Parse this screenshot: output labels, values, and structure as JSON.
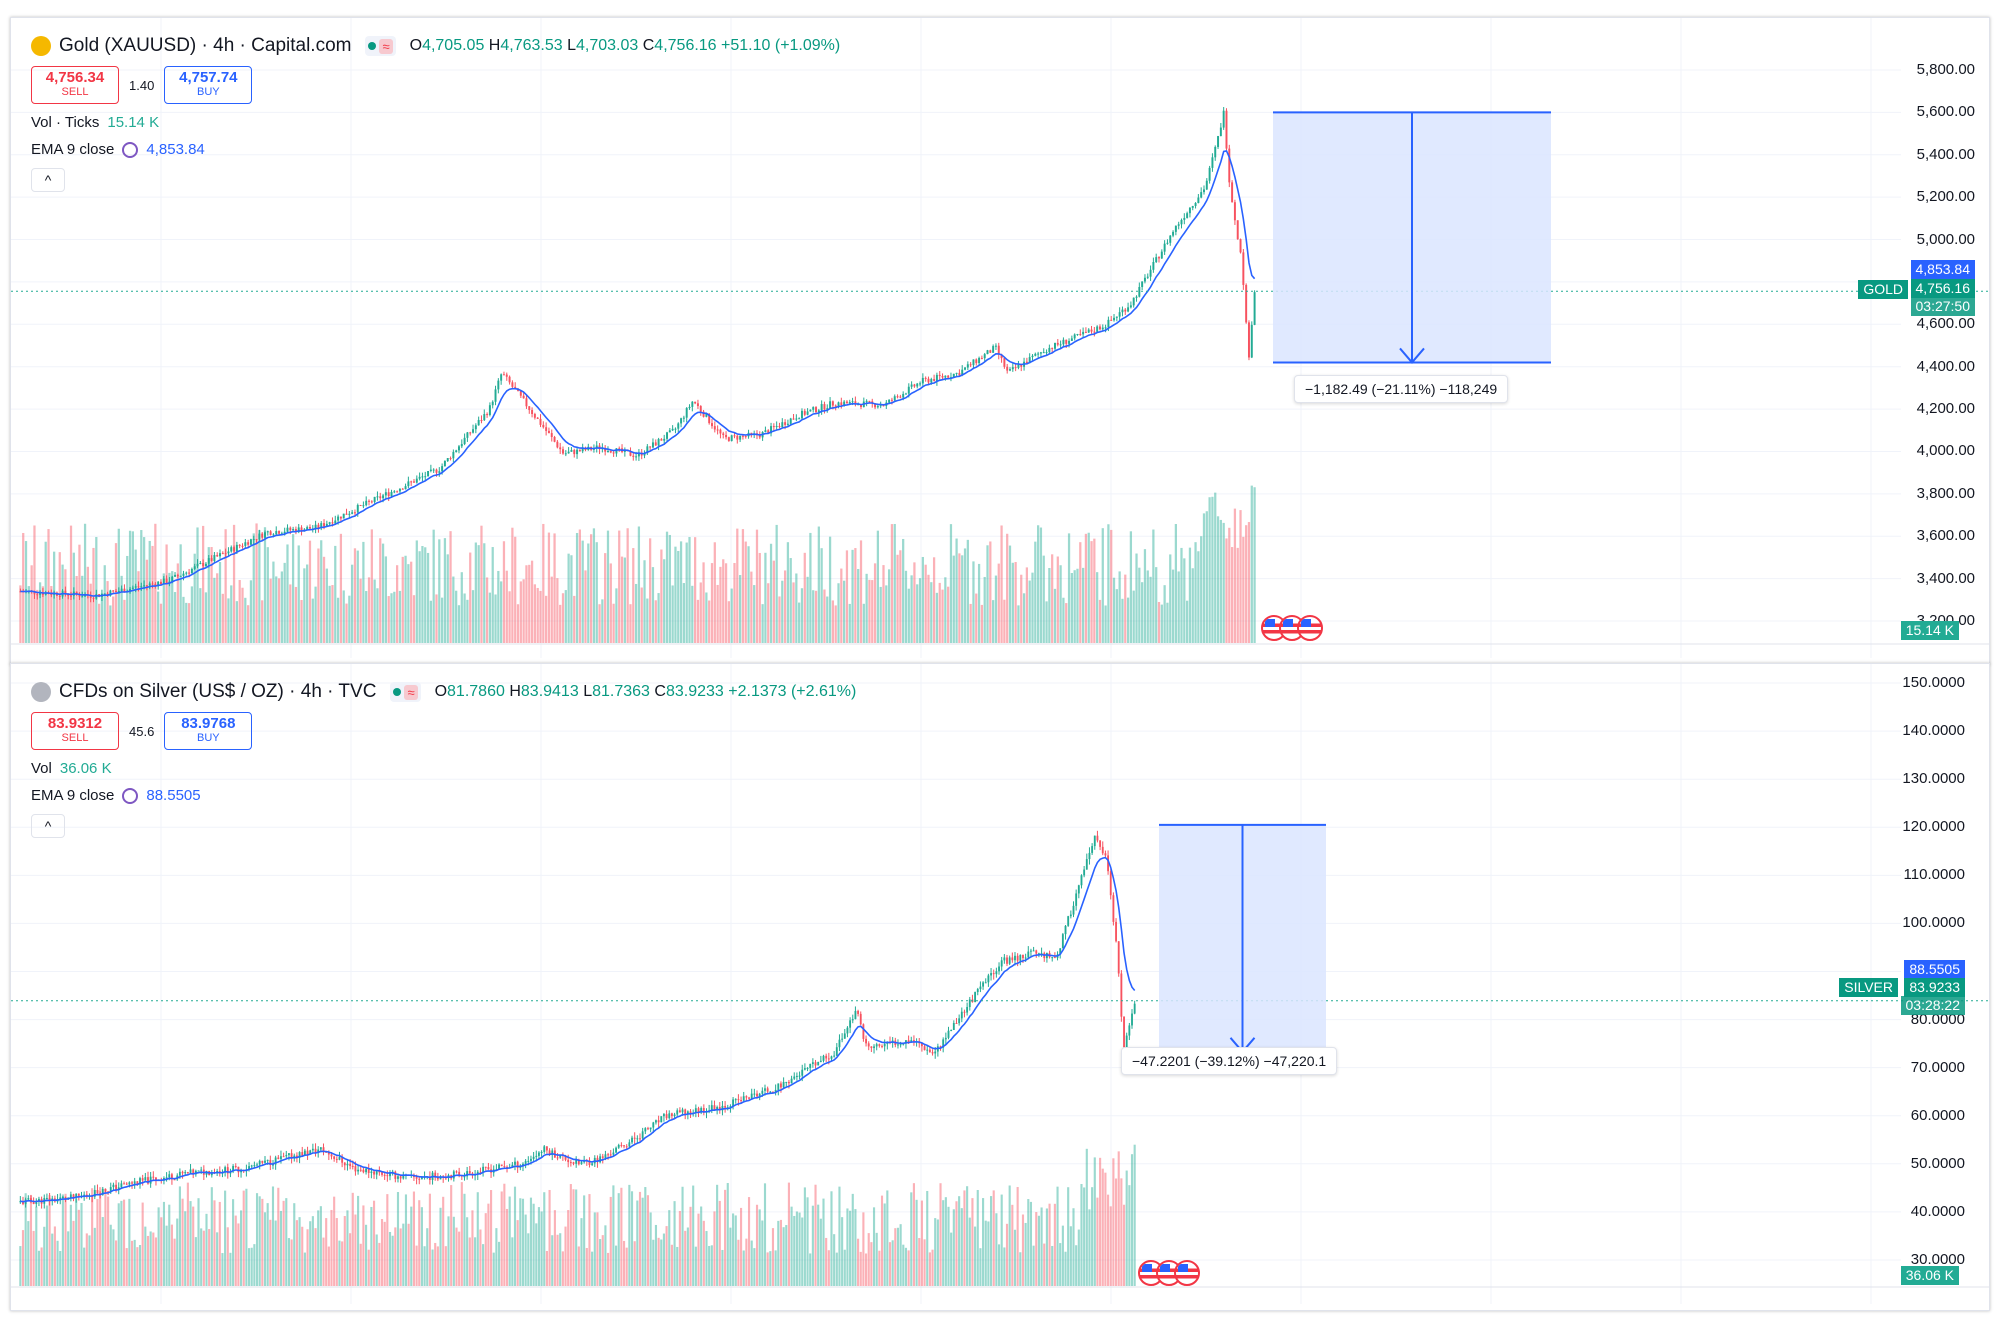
{
  "chart_data": [
    {
      "id": "gold",
      "type": "candlestick",
      "title": "Gold (XAUUSD) · 4h · Capital.com",
      "ohlc": {
        "o_label": "O",
        "o": "4,705.05",
        "h_label": "H",
        "h": "4,763.53",
        "l_label": "L",
        "l": "4,703.03",
        "c_label": "C",
        "c": "4,756.16",
        "change": "+51.10 (+1.09%)"
      },
      "sell": {
        "value": "4,756.34",
        "label": "SELL"
      },
      "buy": {
        "value": "4,757.74",
        "label": "BUY"
      },
      "spread": "1.40",
      "volume": {
        "label": "Vol · Ticks",
        "value": "15.14 K",
        "axis_value": "15.14 K"
      },
      "ema": {
        "label": "EMA 9 close",
        "value": "4,853.84"
      },
      "y_ticks": [
        "5,800.00",
        "5,600.00",
        "5,400.00",
        "5,200.00",
        "5,000.00",
        "4,800.00",
        "4,600.00",
        "4,400.00",
        "4,200.00",
        "4,000.00",
        "3,800.00",
        "3,600.00",
        "3,400.00",
        "3,200.00"
      ],
      "ylim": [
        3200,
        5800
      ],
      "symbol_tag": "GOLD",
      "price_tag": "4,756.16",
      "countdown": "03:27:50",
      "ema_tag": "4,853.84",
      "price_anchors": [
        [
          0,
          3340
        ],
        [
          0.06,
          3320
        ],
        [
          0.12,
          3390
        ],
        [
          0.2,
          3620
        ],
        [
          0.24,
          3640
        ],
        [
          0.29,
          3780
        ],
        [
          0.34,
          3920
        ],
        [
          0.38,
          4200
        ],
        [
          0.39,
          4370
        ],
        [
          0.41,
          4220
        ],
        [
          0.44,
          3990
        ],
        [
          0.47,
          4020
        ],
        [
          0.5,
          3980
        ],
        [
          0.53,
          4100
        ],
        [
          0.545,
          4240
        ],
        [
          0.57,
          4060
        ],
        [
          0.6,
          4080
        ],
        [
          0.63,
          4170
        ],
        [
          0.66,
          4230
        ],
        [
          0.7,
          4220
        ],
        [
          0.73,
          4330
        ],
        [
          0.76,
          4370
        ],
        [
          0.79,
          4490
        ],
        [
          0.8,
          4370
        ],
        [
          0.83,
          4480
        ],
        [
          0.86,
          4550
        ],
        [
          0.88,
          4600
        ],
        [
          0.9,
          4700
        ],
        [
          0.92,
          4900
        ],
        [
          0.935,
          5050
        ],
        [
          0.96,
          5250
        ],
        [
          0.97,
          5470
        ],
        [
          0.975,
          5600
        ],
        [
          0.98,
          5250
        ],
        [
          0.99,
          4880
        ],
        [
          0.995,
          4430
        ],
        [
          1.0,
          4756
        ]
      ],
      "measure": {
        "from": 5600,
        "to": 4420,
        "label": "−1,182.49 (−21.11%) −118,249"
      }
    },
    {
      "id": "silver",
      "type": "candlestick",
      "title": "CFDs on Silver (US$ / OZ) · 4h · TVC",
      "ohlc": {
        "o_label": "O",
        "o": "81.7860",
        "h_label": "H",
        "h": "83.9413",
        "l_label": "L",
        "l": "81.7363",
        "c_label": "C",
        "c": "83.9233",
        "change": "+2.1373 (+2.61%)"
      },
      "sell": {
        "value": "83.9312",
        "label": "SELL"
      },
      "buy": {
        "value": "83.9768",
        "label": "BUY"
      },
      "spread": "45.6",
      "volume": {
        "label": "Vol",
        "value": "36.06 K",
        "axis_value": "36.06 K"
      },
      "ema": {
        "label": "EMA 9 close",
        "value": "88.5505"
      },
      "y_ticks": [
        "150.0000",
        "140.0000",
        "130.0000",
        "120.0000",
        "110.0000",
        "100.0000",
        "90.0000",
        "80.0000",
        "70.0000",
        "60.0000",
        "50.0000",
        "40.0000",
        "30.0000"
      ],
      "ylim": [
        25,
        155
      ],
      "symbol_tag": "SILVER",
      "price_tag": "83.9233",
      "countdown": "03:28:22",
      "ema_tag": "88.5505",
      "price_anchors": [
        [
          0,
          42
        ],
        [
          0.05,
          43
        ],
        [
          0.1,
          46
        ],
        [
          0.15,
          48
        ],
        [
          0.2,
          49
        ],
        [
          0.25,
          52
        ],
        [
          0.27,
          53
        ],
        [
          0.3,
          49
        ],
        [
          0.35,
          47
        ],
        [
          0.4,
          48
        ],
        [
          0.45,
          50
        ],
        [
          0.47,
          53
        ],
        [
          0.5,
          50
        ],
        [
          0.52,
          51
        ],
        [
          0.55,
          55
        ],
        [
          0.58,
          60
        ],
        [
          0.63,
          62
        ],
        [
          0.68,
          66
        ],
        [
          0.73,
          73
        ],
        [
          0.75,
          82
        ],
        [
          0.76,
          74
        ],
        [
          0.8,
          76
        ],
        [
          0.82,
          73
        ],
        [
          0.85,
          83
        ],
        [
          0.88,
          92
        ],
        [
          0.91,
          94
        ],
        [
          0.93,
          93
        ],
        [
          0.95,
          108
        ],
        [
          0.965,
          118
        ],
        [
          0.975,
          113
        ],
        [
          0.985,
          92
        ],
        [
          0.99,
          73
        ],
        [
          1.0,
          84
        ]
      ],
      "measure": {
        "from": 120.5,
        "to": 73.3,
        "label": "−47.2201 (−39.12%) −47,220.1"
      }
    }
  ],
  "colors": {
    "up": "#22ab94",
    "down": "#f7525f",
    "ema": "#2962ff",
    "measure_fill": "#dbe5ff",
    "measure_line": "#2962ff",
    "tag_green": "#089981",
    "tag_blue": "#2962ff"
  }
}
